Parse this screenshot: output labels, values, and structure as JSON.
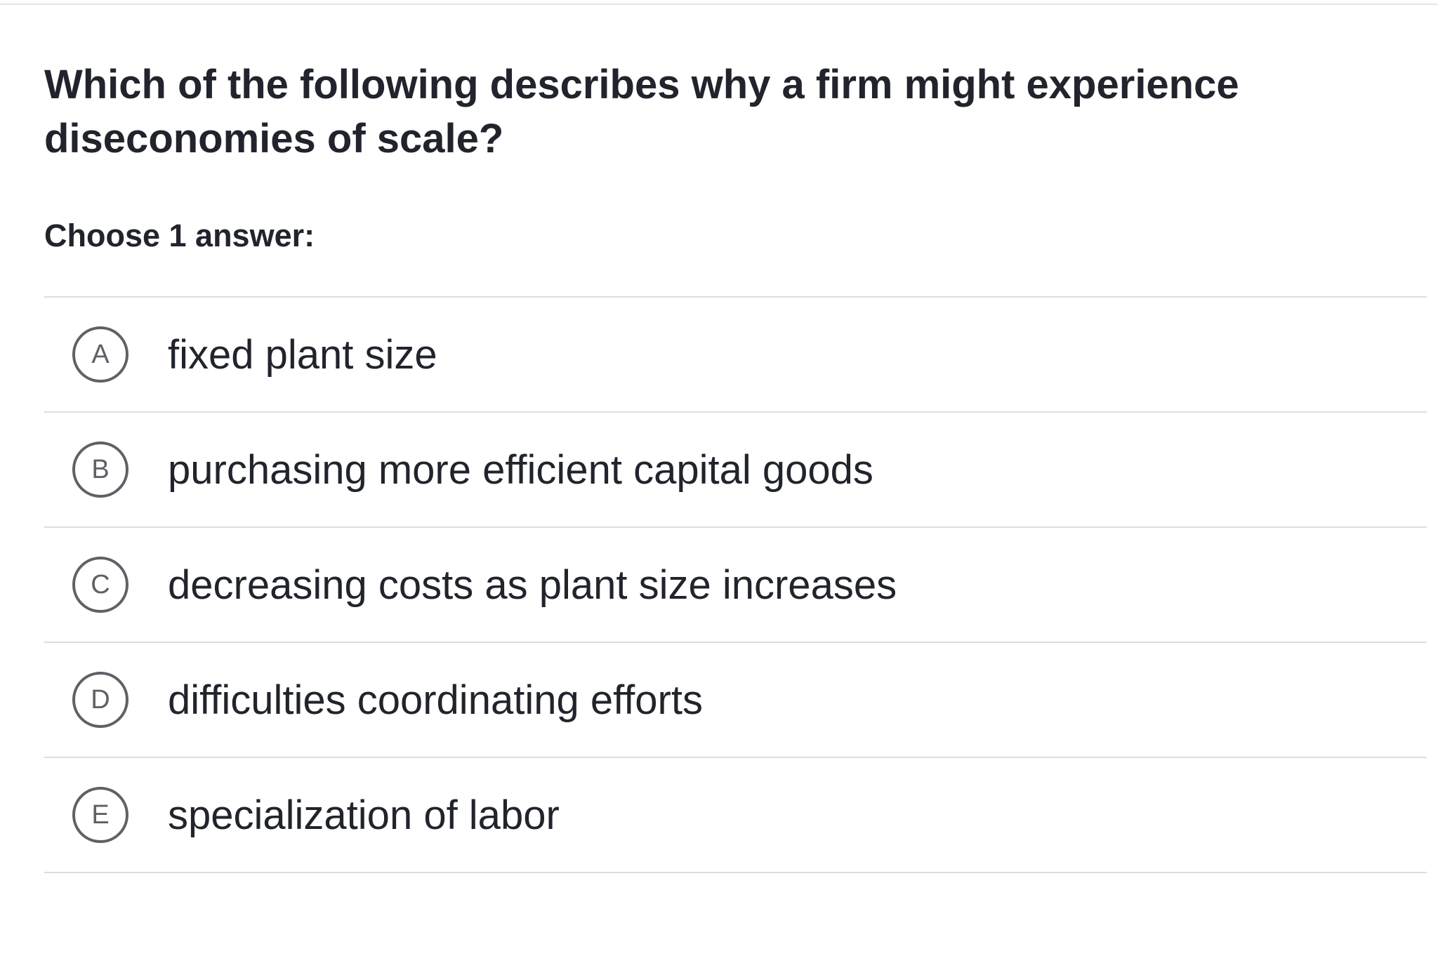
{
  "question": {
    "text": "Which of the following describes why a firm might experience diseconomies of scale?"
  },
  "instruction": "Choose 1 answer:",
  "choices": [
    {
      "letter": "A",
      "text": "fixed plant size"
    },
    {
      "letter": "B",
      "text": "purchasing more efficient capital goods"
    },
    {
      "letter": "C",
      "text": "decreasing costs as plant size increases"
    },
    {
      "letter": "D",
      "text": "difficulties coordinating efforts"
    },
    {
      "letter": "E",
      "text": "specialization of labor"
    }
  ],
  "colors": {
    "text": "#21242c",
    "circle": "#5f6167",
    "divider": "#dcdde0"
  }
}
